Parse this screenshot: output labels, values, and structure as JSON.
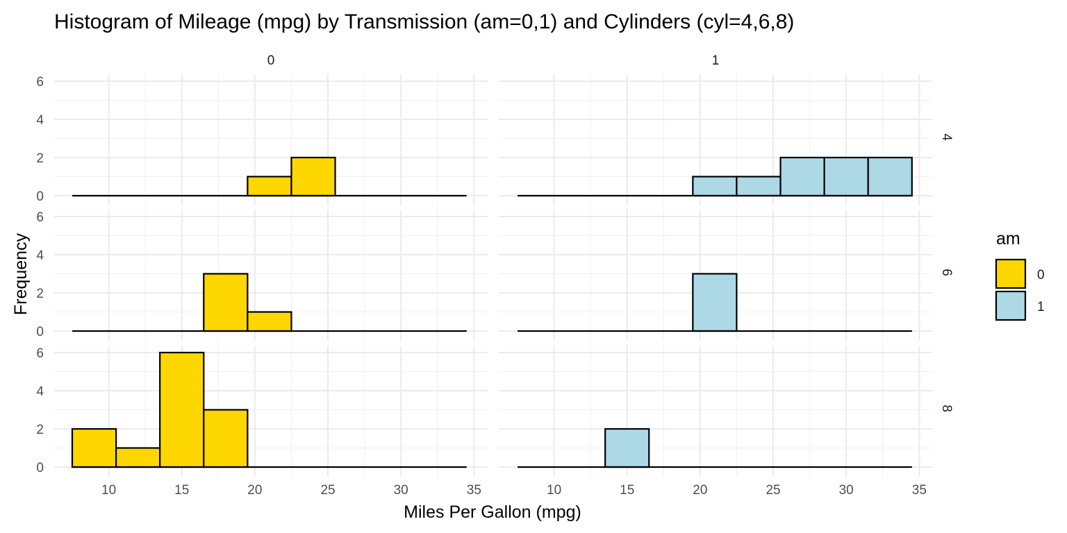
{
  "chart_data": {
    "type": "bar",
    "title": "Histogram of Mileage (mpg) by Transmission (am=0,1) and Cylinders (cyl=4,6,8)",
    "xlabel": "Miles Per Gallon (mpg)",
    "ylabel": "Frequency",
    "xlim": [
      7.5,
      34.5
    ],
    "ylim": [
      0,
      6
    ],
    "x_ticks": [
      10,
      15,
      20,
      25,
      30,
      35
    ],
    "y_ticks": [
      0,
      2,
      4,
      6
    ],
    "grid": true,
    "bin_edges": [
      7.5,
      10.5,
      13.5,
      16.5,
      19.5,
      22.5,
      25.5,
      28.5,
      31.5,
      34.5
    ],
    "columns": [
      "0",
      "1"
    ],
    "rows": [
      "4",
      "6",
      "8"
    ],
    "panels": [
      {
        "am": "0",
        "cyl": "4",
        "counts": [
          0,
          0,
          0,
          0,
          1,
          2,
          0,
          0,
          0
        ]
      },
      {
        "am": "1",
        "cyl": "4",
        "counts": [
          0,
          0,
          0,
          0,
          1,
          1,
          2,
          2,
          2
        ]
      },
      {
        "am": "0",
        "cyl": "6",
        "counts": [
          0,
          0,
          0,
          3,
          1,
          0,
          0,
          0,
          0
        ]
      },
      {
        "am": "1",
        "cyl": "6",
        "counts": [
          0,
          0,
          0,
          0,
          3,
          0,
          0,
          0,
          0
        ]
      },
      {
        "am": "0",
        "cyl": "8",
        "counts": [
          2,
          1,
          6,
          3,
          0,
          0,
          0,
          0,
          0
        ]
      },
      {
        "am": "1",
        "cyl": "8",
        "counts": [
          0,
          0,
          2,
          0,
          0,
          0,
          0,
          0,
          0
        ]
      }
    ],
    "legend": {
      "title": "am",
      "placement": "right",
      "items": [
        {
          "label": "0",
          "color": "#FFD700"
        },
        {
          "label": "1",
          "color": "#ADD8E6"
        }
      ]
    }
  }
}
